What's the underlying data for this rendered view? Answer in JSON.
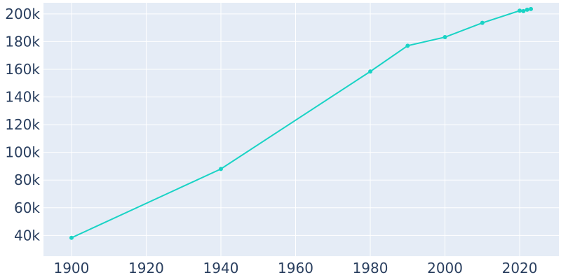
{
  "chart_data": {
    "type": "line",
    "title": "",
    "xlabel": "",
    "ylabel": "",
    "x": [
      1900,
      1940,
      1980,
      1990,
      2000,
      2010,
      2020,
      2021,
      2022,
      2023
    ],
    "series": [
      {
        "values": [
          38300,
          88000,
          158400,
          177000,
          183200,
          193500,
          202300,
          202000,
          203000,
          203500
        ]
      }
    ],
    "xlim": [
      1892.5,
      2030.5
    ],
    "ylim": [
      25000,
      208000
    ],
    "x_ticks": [
      1900,
      1920,
      1940,
      1960,
      1980,
      2000,
      2020
    ],
    "x_tick_labels": [
      "1900",
      "1920",
      "1940",
      "1960",
      "1980",
      "2000",
      "2020"
    ],
    "y_ticks": [
      40000,
      60000,
      80000,
      100000,
      120000,
      140000,
      160000,
      180000,
      200000
    ],
    "y_tick_labels": [
      "40k",
      "60k",
      "80k",
      "100k",
      "120k",
      "140k",
      "160k",
      "180k",
      "200k"
    ],
    "grid": true,
    "markers": true,
    "colors": {
      "line": "#19d3c5",
      "background": "#e5ecf6",
      "grid": "#ffffff",
      "text": "#2a3f5f"
    }
  }
}
